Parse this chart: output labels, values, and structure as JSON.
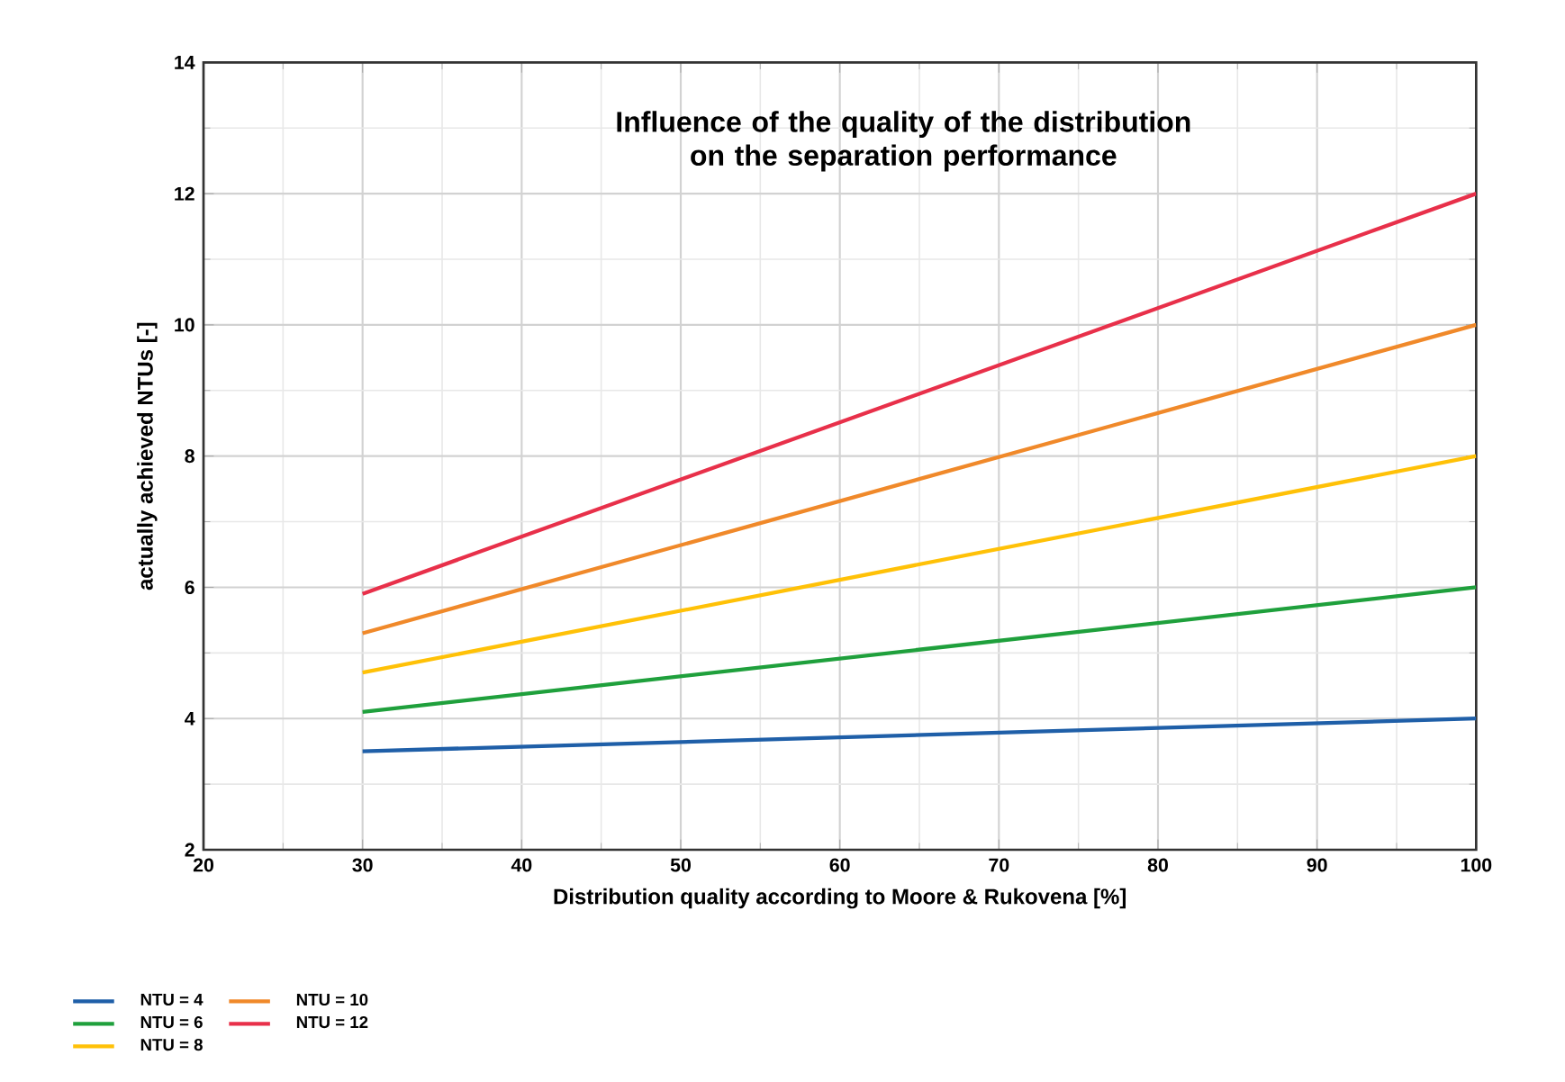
{
  "chart_data": {
    "type": "line",
    "title": "Influence of the quality of the distribution on the separation performance",
    "xlabel": "Distribution quality according to Moore & Rukovena [%]",
    "ylabel": "actually achieved NTUs [-]",
    "x": [
      30,
      100
    ],
    "series": [
      {
        "name": "NTU = 4",
        "color": "#1f5fa8",
        "values": [
          3.5,
          4.0
        ]
      },
      {
        "name": "NTU = 6",
        "color": "#1fa03c",
        "values": [
          4.1,
          6.0
        ]
      },
      {
        "name": "NTU = 8",
        "color": "#ffc107",
        "values": [
          4.7,
          8.0
        ]
      },
      {
        "name": "NTU = 10",
        "color": "#f0892a",
        "values": [
          5.3,
          10.0
        ]
      },
      {
        "name": "NTU = 12",
        "color": "#e8304a",
        "values": [
          5.9,
          12.0
        ]
      }
    ],
    "xlim": [
      20,
      100
    ],
    "ylim": [
      2,
      14
    ],
    "xticks": [
      20,
      30,
      40,
      50,
      60,
      70,
      80,
      90,
      100
    ],
    "yticks": [
      2,
      4,
      6,
      8,
      10,
      12,
      14
    ],
    "grid": true,
    "legend": "bottom left",
    "marker": "none",
    "line_style": "solid"
  }
}
